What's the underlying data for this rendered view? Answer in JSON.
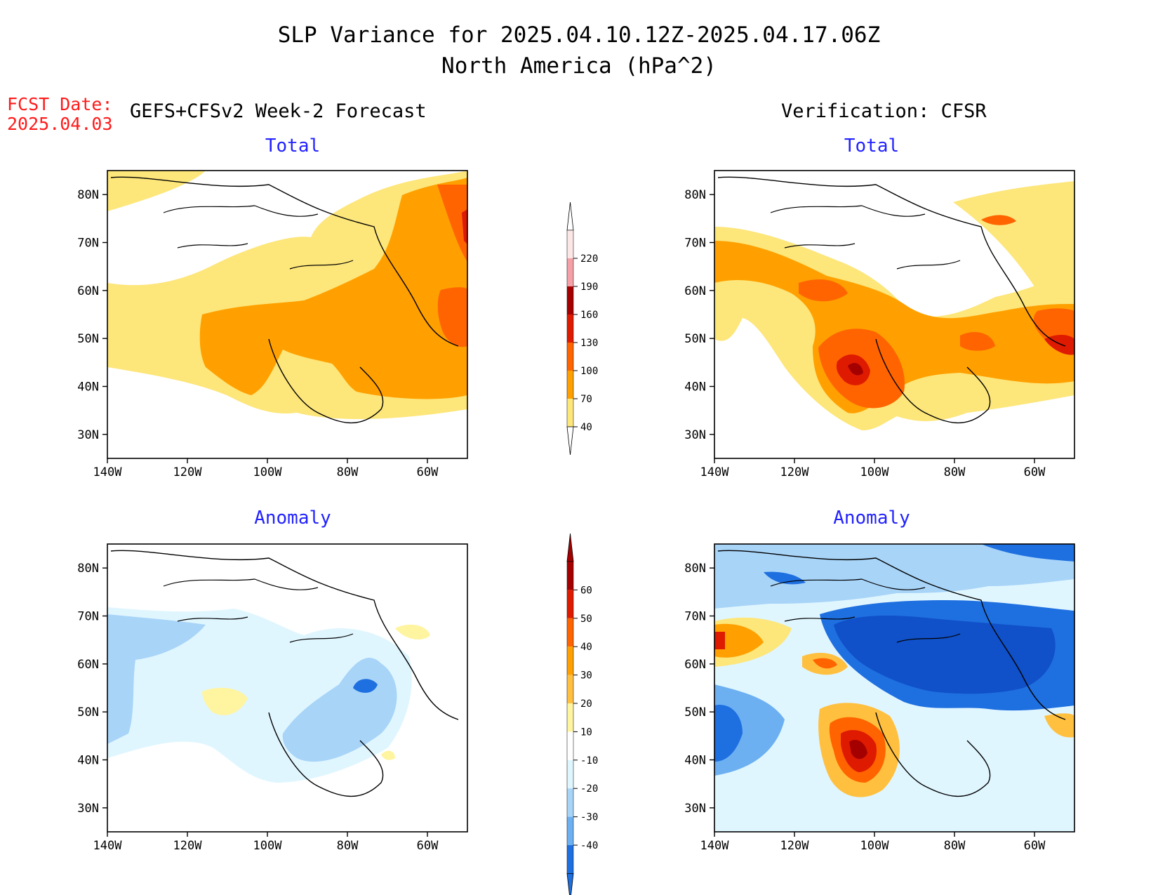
{
  "title_line1": "SLP Variance for 2025.04.10.12Z-2025.04.17.06Z",
  "title_line2": "North America (hPa^2)",
  "fcst_label": "FCST Date:",
  "fcst_date": "2025.04.03",
  "left_heading": "GEFS+CFSv2 Week-2 Forecast",
  "right_heading": "Verification: CFSR",
  "panel_titles": {
    "top": "Total",
    "bottom": "Anomaly"
  },
  "axes": {
    "lat_ticks": [
      "80N",
      "70N",
      "60N",
      "50N",
      "40N",
      "30N"
    ],
    "lon_ticks": [
      "140W",
      "120W",
      "100W",
      "80W",
      "60W"
    ],
    "lon_range": [
      -140,
      -50
    ],
    "lat_range": [
      25,
      85
    ]
  },
  "total_colorbar": {
    "labels": [
      "220",
      "190",
      "160",
      "130",
      "100",
      "70",
      "40"
    ],
    "colors": [
      "#fde6e6",
      "#f4a0a6",
      "#a50000",
      "#de1a00",
      "#ff6400",
      "#ffa000",
      "#fde67a"
    ]
  },
  "anomaly_colorbar": {
    "labels": [
      "60",
      "50",
      "40",
      "30",
      "20",
      "10",
      "-10",
      "-20",
      "-30",
      "-40"
    ],
    "colors": [
      "#a50000",
      "#de1a00",
      "#ff6400",
      "#ffa000",
      "#ffc040",
      "#fff4a0",
      "#ffffff",
      "#e0f6ff",
      "#a8d4f8",
      "#6cb0f2",
      "#1e6fe0"
    ]
  }
}
